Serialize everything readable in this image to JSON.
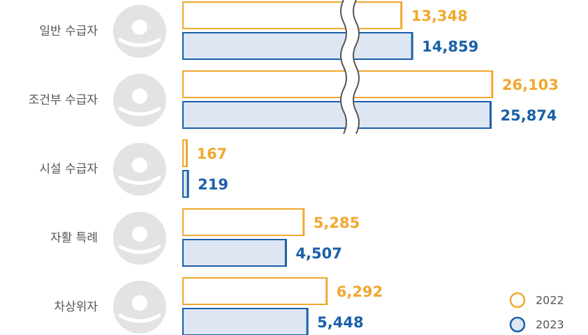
{
  "chart_data": {
    "type": "bar",
    "orientation": "horizontal",
    "categories": [
      "일반 수급자",
      "조건부 수급자",
      "시설 수급자",
      "자활 특례",
      "차상위자"
    ],
    "series": [
      {
        "name": "2022",
        "color": "#f0a830",
        "values": [
          13348,
          26103,
          167,
          5285,
          6292
        ],
        "value_labels": [
          "13,348",
          "26,103",
          "167",
          "5,285",
          "6,292"
        ]
      },
      {
        "name": "2023",
        "color": "#1a5fa8",
        "values": [
          14859,
          25874,
          219,
          4507,
          5448
        ],
        "value_labels": [
          "14,859",
          "25,874",
          "219",
          "4,507",
          "5,448"
        ]
      }
    ],
    "legend": "bottom-right"
  }
}
